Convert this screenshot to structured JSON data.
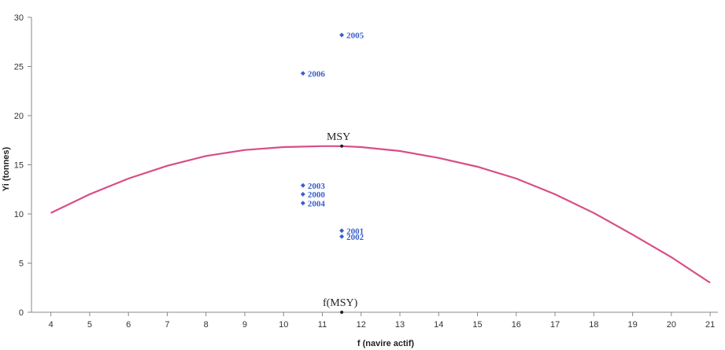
{
  "chart_data": {
    "type": "scatter",
    "title": "",
    "xlabel": "f (navire actif)",
    "ylabel": "Yi (tonnes)",
    "xlim": [
      3.5,
      21.2
    ],
    "ylim": [
      0,
      30
    ],
    "x_ticks": [
      4,
      5,
      6,
      7,
      8,
      9,
      10,
      11,
      12,
      13,
      14,
      15,
      16,
      17,
      18,
      19,
      20,
      21
    ],
    "y_ticks": [
      0,
      5,
      10,
      15,
      20,
      25,
      30
    ],
    "grid": false,
    "colors": {
      "points": "#3a5fcd",
      "curve": "#d94d86",
      "axis": "#888888"
    },
    "series": [
      {
        "type": "scatter",
        "points": [
          {
            "x": 11.5,
            "y": 28.2,
            "label": "2005"
          },
          {
            "x": 10.5,
            "y": 24.3,
            "label": "2006"
          },
          {
            "x": 10.5,
            "y": 12.9,
            "label": "2003"
          },
          {
            "x": 10.5,
            "y": 12.0,
            "label": "2000"
          },
          {
            "x": 10.5,
            "y": 11.1,
            "label": "2004"
          },
          {
            "x": 11.5,
            "y": 8.3,
            "label": "2001"
          },
          {
            "x": 11.5,
            "y": 7.7,
            "label": "2002"
          }
        ]
      },
      {
        "type": "line",
        "curve": "quadratic",
        "x": [
          4,
          5,
          6,
          7,
          8,
          9,
          10,
          11,
          11.5,
          12,
          13,
          14,
          15,
          16,
          17,
          18,
          19,
          20,
          21
        ],
        "y": [
          10.1,
          12.0,
          13.6,
          14.9,
          15.9,
          16.5,
          16.8,
          16.9,
          16.9,
          16.8,
          16.4,
          15.7,
          14.8,
          13.6,
          12.0,
          10.1,
          7.9,
          5.6,
          3.0
        ]
      }
    ],
    "annotations": [
      {
        "text": "MSY",
        "x": 11.5,
        "y": 16.9
      },
      {
        "text": "f(MSY)",
        "x": 11.5,
        "y": 0
      }
    ]
  }
}
